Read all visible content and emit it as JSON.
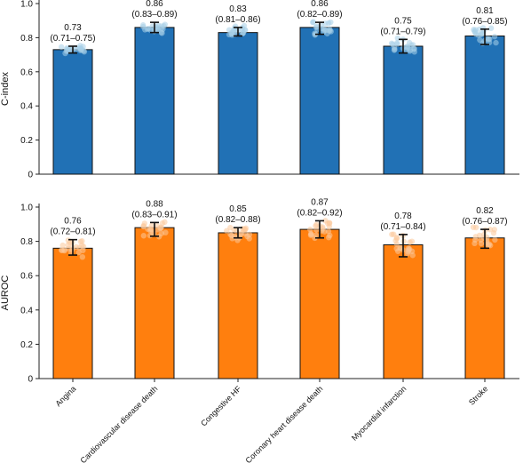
{
  "chart_data": [
    {
      "type": "bar",
      "ylabel": "C-index",
      "ylim": [
        0,
        1.0
      ],
      "yticks": [
        "0",
        "0.2",
        "0.4",
        "0.6",
        "0.8",
        "1.0"
      ],
      "color": "#2171b5",
      "values": [
        0.73,
        0.86,
        0.83,
        0.86,
        0.75,
        0.81
      ],
      "ci_low": [
        0.71,
        0.83,
        0.81,
        0.82,
        0.71,
        0.76
      ],
      "ci_high": [
        0.75,
        0.89,
        0.86,
        0.89,
        0.79,
        0.85
      ],
      "labels": [
        "0.73",
        "0.86",
        "0.83",
        "0.86",
        "0.75",
        "0.81"
      ],
      "ci_labels": [
        "(0.71–0.75)",
        "(0.83–0.89)",
        "(0.81–0.86)",
        "(0.82–0.89)",
        "(0.71–0.79)",
        "(0.76–0.85)"
      ]
    },
    {
      "type": "bar",
      "ylabel": "AUROC",
      "ylim": [
        0,
        1.0
      ],
      "yticks": [
        "0",
        "0.2",
        "0.4",
        "0.6",
        "0.8",
        "1.0"
      ],
      "color": "#ff7f0e",
      "values": [
        0.76,
        0.88,
        0.85,
        0.87,
        0.78,
        0.82
      ],
      "ci_low": [
        0.72,
        0.83,
        0.82,
        0.82,
        0.71,
        0.76
      ],
      "ci_high": [
        0.81,
        0.91,
        0.88,
        0.92,
        0.84,
        0.87
      ],
      "labels": [
        "0.76",
        "0.88",
        "0.85",
        "0.87",
        "0.78",
        "0.82"
      ],
      "ci_labels": [
        "(0.72–0.81)",
        "(0.83–0.91)",
        "(0.82–0.88)",
        "(0.82–0.92)",
        "(0.71–0.84)",
        "(0.76–0.87)"
      ]
    }
  ],
  "categories": [
    "Angina",
    "Cardiovascular disease death",
    "Congestive HF",
    "Coronary heart disease death",
    "Myocardial infarction",
    "Stroke"
  ]
}
